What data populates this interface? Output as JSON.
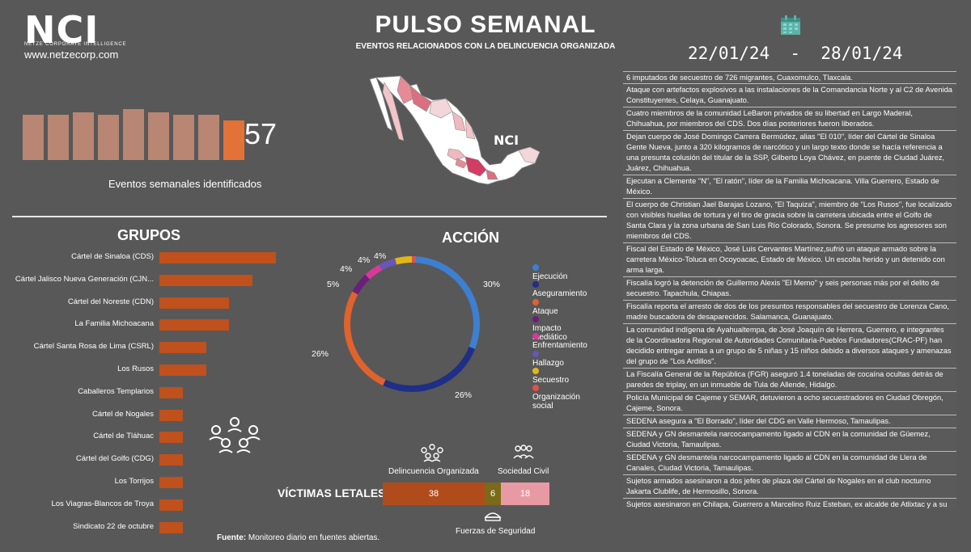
{
  "header": {
    "logo": "NCI",
    "logo_sub": "NETZE CORPORATE INTELLIGENCE",
    "website": "www.netzecorp.com",
    "title": "PULSO SEMANAL",
    "subtitle": "EVENTOS RELACIONADOS CON LA DELINCUENCIA ORGANIZADA",
    "date_range": "22/01/24  -  28/01/24"
  },
  "weekly": {
    "bars": [
      0.82,
      0.82,
      0.87,
      0.82,
      0.92,
      0.87,
      0.82,
      0.82,
      0.72
    ],
    "count": "57",
    "label": "Eventos semanales identificados"
  },
  "map": {
    "logo": "NCI"
  },
  "groups": {
    "title": "GRUPOS",
    "items": [
      {
        "label": "Cártel de Sinaloa (CDS)",
        "value": 10
      },
      {
        "label": "Cártel Jalisco Nueva Generación (CJN...",
        "value": 8
      },
      {
        "label": "Cártel del Noreste (CDN)",
        "value": 6
      },
      {
        "label": "La Familia Michoacana",
        "value": 6
      },
      {
        "label": "Cártel Santa Rosa de Lima (CSRL)",
        "value": 4
      },
      {
        "label": "Los Rusos",
        "value": 4
      },
      {
        "label": "Caballeros Templarios",
        "value": 2
      },
      {
        "label": "Cártel de Nogales",
        "value": 2
      },
      {
        "label": "Cártel de Tláhuac",
        "value": 2
      },
      {
        "label": "Cártel del Golfo (CDG)",
        "value": 2
      },
      {
        "label": "Los Torrijos",
        "value": 2
      },
      {
        "label": "Los Viagras-Blancos de Troya",
        "value": 2
      },
      {
        "label": "Sindicato 22 de octubre",
        "value": 2
      }
    ]
  },
  "action": {
    "title": "ACCIÓN",
    "slices": [
      {
        "label": "Ejecución",
        "value": 30,
        "pct_label": "30%",
        "color": "#3d7fd0"
      },
      {
        "label": "Aseguramiento",
        "value": 26,
        "pct_label": "26%",
        "color": "#1f2f85"
      },
      {
        "label": "Ataque",
        "value": 26,
        "pct_label": "26%",
        "color": "#e0622c"
      },
      {
        "label": "Impacto mediático",
        "value": 5,
        "pct_label": "5%",
        "color": "#6b1f7a"
      },
      {
        "label": "Enfrentamiento",
        "value": 4,
        "pct_label": "4%",
        "color": "#d6399a"
      },
      {
        "label": "Hallazgo",
        "value": 4,
        "pct_label": "4%",
        "color": "#6a55b8"
      },
      {
        "label": "Secuestro",
        "value": 4,
        "pct_label": "4%",
        "color": "#e0b814"
      },
      {
        "label": "Organización social",
        "value": 1,
        "pct_label": "",
        "color": "#e05050"
      }
    ]
  },
  "victims": {
    "title": "VÍCTIMAS LETALES",
    "cat_organized": "Delincuencia Organizada",
    "cat_civil": "Sociedad Civil",
    "cat_security": "Fuerzas de Seguridad",
    "segments": [
      {
        "label": "38",
        "value": 38,
        "color": "#b04c1c"
      },
      {
        "label": "6",
        "value": 6,
        "color": "#7a6a1a"
      },
      {
        "label": "18",
        "value": 18,
        "color": "#e89aa4"
      }
    ]
  },
  "source": {
    "label": "Fuente:",
    "text": "Monitoreo diario en fuentes abiertas."
  },
  "news": [
    "6 imputados de secuestro de 726 migrantes, Cuaxomulco, Tlaxcala.",
    "Ataque con artefactos explosivos a las instalaciones de la Comandancia Norte y al C2 de Avenida Constituyentes, Celaya, Guanajuato.",
    "Cuatro miembros de la comunidad LeBaron privados de su libertad en Largo Maderal, Chihuahua, por miembros del CDS. Dos días posteriores fueron liberados.",
    "Dejan cuerpo de José Domingo Carrera Bermúdez, alias \"El 010\", líder del Cártel de Sinaloa Gente Nueva, junto a 320 kilogramos de narcótico y un largo texto donde se hacía referencia a una presunta colusión del titular de la SSP, Gilberto Loya Chávez, en puente de Ciudad Juárez, Juárez, Chihuahua.",
    "Ejecutan a Clemente \"N\", \"El ratón\", líder de la Familia Michoacana. Villa Guerrero, Estado de México.",
    "El cuerpo de Christian Jael Barajas Lozano, \"El Taquiza\", miembro de \"Los Rusos\", fue localizado con visibles huellas de tortura y el tiro de gracia sobre la carretera ubicada entre el Golfo de Santa Clara y la zona urbana de San Luis Río Colorado, Sonora. Se presume los agresores son miembros del CDS.",
    "Fiscal del Estado de México, José Luis Cervantes Martínez,sufrió un ataque armado sobre la carretera México-Toluca en Ocoyoacac, Estado de México. Un escolta herido y un detenido con arma larga.",
    "Fiscalía logró la detención de Guillermo Alexis \"El Memo\" y seis personas más por el delito de secuestro. Tapachula, Chiapas.",
    "Fiscalía reporta el arresto de dos de los presuntos responsables del secuestro de Lorenza Cano, madre buscadora de desaparecidos. Salamanca, Guanajuato.",
    "La comunidad indígena de Ayahualtempa, de José Joaquín de Herrera, Guerrero, e integrantes de la Coordinadora Regional de Autoridades Comunitaria-Pueblos Fundadores(CRAC-PF) han decidido entregar armas a un grupo de 5 niñas y 15 niños debido a diversos ataques y amenazas del grupo de \"Los Ardillos\".",
    "La Fiscalía General de la República (FGR) aseguró 1.4 toneladas de cocaína ocultas detrás de paredes de triplay, en un inmueble de Tula de Allende, Hidalgo.",
    "Policía Municipal de Cajeme y SEMAR, detuvieron a ocho secuestradores en Ciudad Obregón, Cajeme, Sonora.",
    "SEDENA asegura a \"El Borrado\", líder del CDG en Valle Hermoso, Tamaulipas.",
    "SEDENA y GN desmantela narcocampamento ligado al CDN en la comunidad de Güemez, Ciudad Victoria, Tamaulipas.",
    "SEDENA y GN desmantela narcocampamento ligado al CDN en la comunidad de Llera de Canales, Ciudad Victoria, Tamaulipas.",
    "Sujetos armados asesinaron a dos jefes de plaza del Cártel de Nogales en el club nocturno Jakarta Clublife, de Hermosillo, Sonora.",
    "Sujetos asesinaron en Chilapa, Guerrero a Marcelino Ruiz Esteban, ex alcalde de Atlixtac y a su esposa. Se perfilaba como el favorito entre la ciudadanía del municipio de Atlixtac para contender nuevamente por la presidencia municipal por parte del PRD."
  ]
}
